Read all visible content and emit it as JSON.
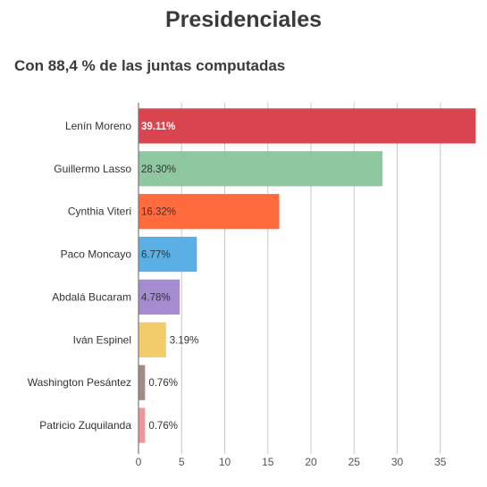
{
  "chart_data": {
    "type": "bar",
    "orientation": "horizontal",
    "title": "Presidenciales",
    "subtitle": "Con 88,4 % de las juntas computadas",
    "categories": [
      "Lenín Moreno",
      "Guillermo Lasso",
      "Cynthia Viteri",
      "Paco Moncayo",
      "Abdalá Bucaram",
      "Iván Espinel",
      "Washington Pesántez",
      "Patricio Zuquilanda"
    ],
    "values": [
      39.11,
      28.3,
      16.32,
      6.77,
      4.78,
      3.19,
      0.76,
      0.76
    ],
    "value_labels": [
      "39.11%",
      "28.30%",
      "16.32%",
      "6.77%",
      "4.78%",
      "3.19%",
      "0.76%",
      "0.76%"
    ],
    "colors": [
      "#d9454f",
      "#8fc7a1",
      "#ff6b3d",
      "#5ab0e4",
      "#a58bcf",
      "#f3cc6a",
      "#a48a82",
      "#f0959a"
    ],
    "xlim": [
      0,
      40
    ],
    "xticks": [
      0,
      5,
      10,
      15,
      20,
      25,
      30,
      35
    ],
    "grid": true
  }
}
